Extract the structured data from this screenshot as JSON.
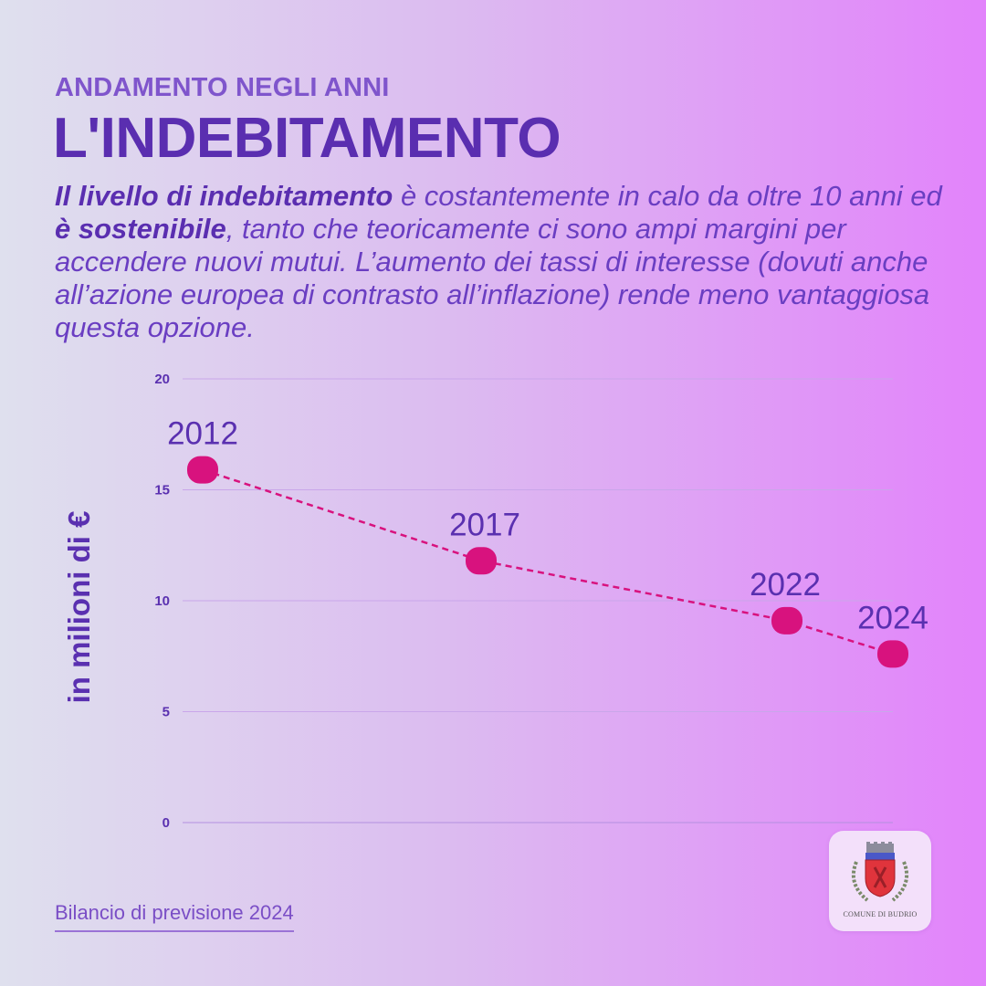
{
  "header": {
    "subtitle": "ANDAMENTO NEGLI ANNI",
    "title": "L'INDEBITAMENTO"
  },
  "paragraph": {
    "bold1": "Il livello di indebitamento",
    "text1": " è costantemente in calo da oltre 10 anni ed ",
    "bold2": "è sostenibile",
    "text2": ", tanto che teoricamente ci sono ampi margini per accendere nuovi mutui. L’aumento dei tassi di interesse (dovuti anche all’azione europea di contrasto all’inflazione) rende meno vantaggiosa questa opzione."
  },
  "chart_data": {
    "type": "line",
    "x": [
      "2012",
      "2017",
      "2022",
      "2024"
    ],
    "values": [
      15.9,
      11.8,
      9.1,
      7.6
    ],
    "ylabel": "in milioni di €",
    "ylim": [
      0,
      20
    ],
    "yticks": [
      "0",
      "5",
      "10",
      "15",
      "20"
    ],
    "grid": true,
    "line_color": "#d8127e",
    "point_color": "#d8127e",
    "label_color": "#5a30b0"
  },
  "footer": {
    "text": "Bilancio di previsione 2024"
  },
  "logo": {
    "text": "COMUNE DI BUDRIO"
  }
}
